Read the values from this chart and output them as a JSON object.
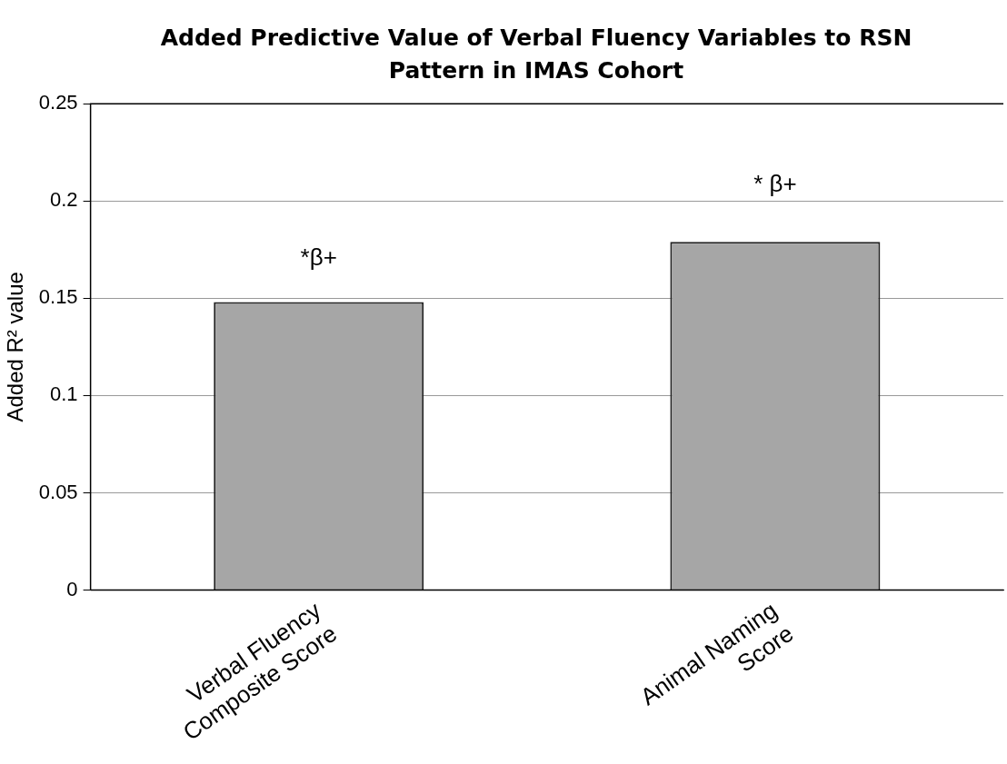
{
  "chart_data": {
    "type": "bar",
    "title": "Added Predictive Value of Verbal Fluency Variables to RSN Pattern in IMAS Cohort",
    "ylabel": "Added R² value",
    "categories": [
      "Verbal Fluency Composite Score",
      "Animal Naming Score"
    ],
    "values": [
      0.148,
      0.179
    ],
    "color": "#a6a6a6",
    "ylim": [
      0,
      0.25
    ],
    "yticks": [
      0,
      0.05,
      0.1,
      0.15,
      0.2,
      0.25
    ],
    "grid": "y",
    "annotations": [
      "*β+",
      "* β+"
    ]
  }
}
